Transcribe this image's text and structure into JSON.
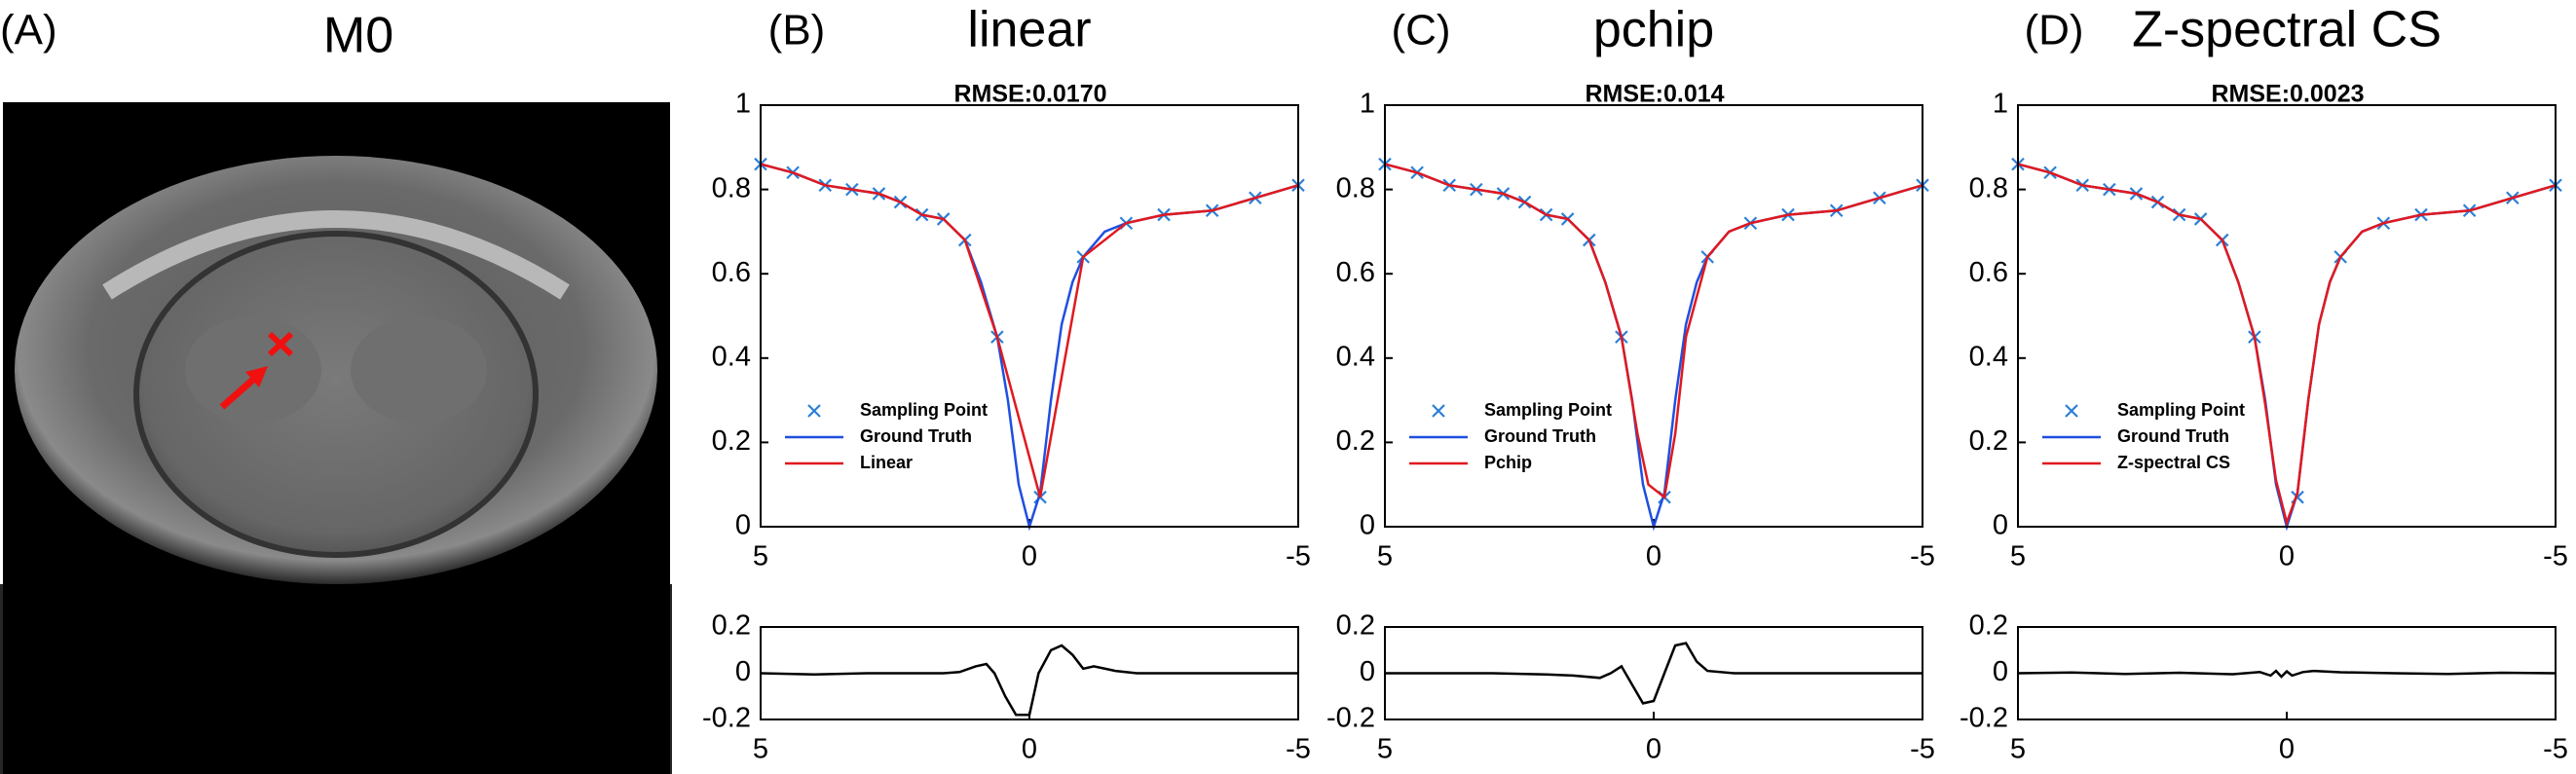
{
  "image_panel": {
    "label": "(A)",
    "title": "M0"
  },
  "chart_data": [
    {
      "type": "line",
      "panel_label": "(B)",
      "title": "linear",
      "subtitle": "RMSE:0.0170",
      "legend": "lower left",
      "xlim": [
        5,
        -5
      ],
      "xticks": [
        5,
        0,
        -5
      ],
      "ylim": [
        0,
        1
      ],
      "yticks": [
        0,
        0.2,
        0.4,
        0.6,
        0.8,
        1
      ],
      "series": [
        {
          "name": "Sampling Point",
          "color": "#2b7fd6",
          "marker": "x",
          "x": [
            5,
            4.4,
            3.8,
            3.3,
            2.8,
            2.4,
            2.0,
            1.6,
            1.2,
            0.6,
            -0.2,
            -1.0,
            -1.8,
            -2.5,
            -3.4,
            -4.2,
            -5
          ],
          "values": [
            0.86,
            0.84,
            0.81,
            0.8,
            0.79,
            0.77,
            0.74,
            0.73,
            0.68,
            0.45,
            0.07,
            0.64,
            0.72,
            0.74,
            0.75,
            0.78,
            0.81
          ]
        },
        {
          "name": "Ground Truth",
          "color": "#1f4fe0",
          "x": [
            5,
            4.4,
            3.8,
            3.3,
            2.8,
            2.4,
            2.0,
            1.6,
            1.2,
            0.9,
            0.6,
            0.4,
            0.2,
            0,
            -0.2,
            -0.4,
            -0.6,
            -0.8,
            -1.0,
            -1.4,
            -1.8,
            -2.5,
            -3.4,
            -4.2,
            -5
          ],
          "values": [
            0.86,
            0.84,
            0.81,
            0.8,
            0.79,
            0.77,
            0.74,
            0.73,
            0.68,
            0.58,
            0.45,
            0.3,
            0.1,
            0.0,
            0.08,
            0.3,
            0.48,
            0.58,
            0.64,
            0.7,
            0.72,
            0.74,
            0.75,
            0.78,
            0.81
          ]
        },
        {
          "name": "Linear",
          "color": "#e0191f",
          "x": [
            5,
            4.4,
            3.8,
            3.3,
            2.8,
            2.4,
            2.0,
            1.6,
            1.2,
            0.6,
            -0.2,
            -1.0,
            -1.8,
            -2.5,
            -3.4,
            -4.2,
            -5
          ],
          "values": [
            0.86,
            0.84,
            0.81,
            0.8,
            0.79,
            0.77,
            0.74,
            0.73,
            0.68,
            0.45,
            0.07,
            0.64,
            0.72,
            0.74,
            0.75,
            0.78,
            0.81
          ]
        }
      ]
    },
    {
      "type": "line",
      "xlim": [
        5,
        -5
      ],
      "xticks": [
        5,
        0,
        -5
      ],
      "ylim": [
        -0.2,
        0.2
      ],
      "yticks": [
        0.2,
        0,
        -0.2
      ],
      "series": [
        {
          "color": "#000000",
          "x": [
            5,
            4,
            3,
            2,
            1.6,
            1.3,
            1.0,
            0.8,
            0.65,
            0.45,
            0.25,
            0,
            -0.17,
            -0.4,
            -0.6,
            -0.8,
            -1.0,
            -1.2,
            -1.6,
            -2,
            -3,
            -4,
            -5
          ],
          "values": [
            0,
            -0.005,
            0,
            0,
            0,
            0.005,
            0.03,
            0.04,
            0,
            -0.1,
            -0.18,
            -0.18,
            0,
            0.1,
            0.12,
            0.08,
            0.02,
            0.03,
            0.01,
            0,
            0,
            0,
            0
          ]
        }
      ]
    },
    {
      "type": "line",
      "panel_label": "(C)",
      "title": "pchip",
      "subtitle": "RMSE:0.014",
      "legend": "lower left",
      "xlim": [
        5,
        -5
      ],
      "xticks": [
        5,
        0,
        -5
      ],
      "ylim": [
        0,
        1
      ],
      "yticks": [
        0,
        0.2,
        0.4,
        0.6,
        0.8,
        1
      ],
      "series": [
        {
          "name": "Sampling Point",
          "color": "#2b7fd6",
          "marker": "x",
          "x": [
            5,
            4.4,
            3.8,
            3.3,
            2.8,
            2.4,
            2.0,
            1.6,
            1.2,
            0.6,
            -0.2,
            -1.0,
            -1.8,
            -2.5,
            -3.4,
            -4.2,
            -5
          ],
          "values": [
            0.86,
            0.84,
            0.81,
            0.8,
            0.79,
            0.77,
            0.74,
            0.73,
            0.68,
            0.45,
            0.07,
            0.64,
            0.72,
            0.74,
            0.75,
            0.78,
            0.81
          ]
        },
        {
          "name": "Ground Truth",
          "color": "#1f4fe0",
          "x": [
            5,
            4.4,
            3.8,
            3.3,
            2.8,
            2.4,
            2.0,
            1.6,
            1.2,
            0.9,
            0.6,
            0.4,
            0.2,
            0,
            -0.2,
            -0.4,
            -0.6,
            -0.8,
            -1.0,
            -1.4,
            -1.8,
            -2.5,
            -3.4,
            -4.2,
            -5
          ],
          "values": [
            0.86,
            0.84,
            0.81,
            0.8,
            0.79,
            0.77,
            0.74,
            0.73,
            0.68,
            0.58,
            0.45,
            0.3,
            0.1,
            0.0,
            0.08,
            0.3,
            0.48,
            0.58,
            0.64,
            0.7,
            0.72,
            0.74,
            0.75,
            0.78,
            0.81
          ]
        },
        {
          "name": "Pchip",
          "color": "#e0191f",
          "x": [
            5,
            4.4,
            3.8,
            3.3,
            2.8,
            2.4,
            2.0,
            1.6,
            1.2,
            0.9,
            0.6,
            0.3,
            0.1,
            -0.2,
            -0.4,
            -0.6,
            -1.0,
            -1.4,
            -1.8,
            -2.5,
            -3.4,
            -4.2,
            -5
          ],
          "values": [
            0.86,
            0.84,
            0.81,
            0.8,
            0.79,
            0.77,
            0.74,
            0.73,
            0.68,
            0.58,
            0.45,
            0.22,
            0.1,
            0.07,
            0.22,
            0.45,
            0.64,
            0.7,
            0.72,
            0.74,
            0.75,
            0.78,
            0.81
          ]
        }
      ]
    },
    {
      "type": "line",
      "xlim": [
        5,
        -5
      ],
      "xticks": [
        5,
        0,
        -5
      ],
      "ylim": [
        -0.2,
        0.2
      ],
      "yticks": [
        0.2,
        0,
        -0.2
      ],
      "series": [
        {
          "color": "#000000",
          "x": [
            5,
            4,
            3,
            2,
            1.5,
            1.0,
            0.8,
            0.6,
            0.4,
            0.2,
            0,
            -0.2,
            -0.4,
            -0.6,
            -0.8,
            -1.0,
            -1.5,
            -2,
            -3,
            -4,
            -5
          ],
          "values": [
            0,
            0,
            0,
            -0.005,
            -0.01,
            -0.02,
            0.0,
            0.03,
            -0.05,
            -0.13,
            -0.12,
            0.0,
            0.12,
            0.13,
            0.05,
            0.01,
            0,
            0,
            0,
            0,
            0
          ]
        }
      ]
    },
    {
      "type": "line",
      "panel_label": "(D)",
      "title": "Z-spectral CS",
      "subtitle": "RMSE:0.0023",
      "legend": "lower left",
      "xlim": [
        5,
        -5
      ],
      "xticks": [
        5,
        0,
        -5
      ],
      "ylim": [
        0,
        1
      ],
      "yticks": [
        0,
        0.2,
        0.4,
        0.6,
        0.8,
        1
      ],
      "series": [
        {
          "name": "Sampling Point",
          "color": "#2b7fd6",
          "marker": "x",
          "x": [
            5,
            4.4,
            3.8,
            3.3,
            2.8,
            2.4,
            2.0,
            1.6,
            1.2,
            0.6,
            -0.2,
            -1.0,
            -1.8,
            -2.5,
            -3.4,
            -4.2,
            -5
          ],
          "values": [
            0.86,
            0.84,
            0.81,
            0.8,
            0.79,
            0.77,
            0.74,
            0.73,
            0.68,
            0.45,
            0.07,
            0.64,
            0.72,
            0.74,
            0.75,
            0.78,
            0.81
          ]
        },
        {
          "name": "Ground Truth",
          "color": "#1f4fe0",
          "x": [
            5,
            4.4,
            3.8,
            3.3,
            2.8,
            2.4,
            2.0,
            1.6,
            1.2,
            0.9,
            0.6,
            0.4,
            0.2,
            0,
            -0.2,
            -0.4,
            -0.6,
            -0.8,
            -1.0,
            -1.4,
            -1.8,
            -2.5,
            -3.4,
            -4.2,
            -5
          ],
          "values": [
            0.86,
            0.84,
            0.81,
            0.8,
            0.79,
            0.77,
            0.74,
            0.73,
            0.68,
            0.58,
            0.45,
            0.3,
            0.1,
            0.0,
            0.08,
            0.3,
            0.48,
            0.58,
            0.64,
            0.7,
            0.72,
            0.74,
            0.75,
            0.78,
            0.81
          ]
        },
        {
          "name": "Z-spectral CS",
          "color": "#e0191f",
          "x": [
            5,
            4.4,
            3.8,
            3.3,
            2.8,
            2.4,
            2.0,
            1.6,
            1.2,
            0.9,
            0.6,
            0.4,
            0.2,
            0,
            -0.2,
            -0.4,
            -0.6,
            -0.8,
            -1.0,
            -1.4,
            -1.8,
            -2.5,
            -3.4,
            -4.2,
            -5
          ],
          "values": [
            0.86,
            0.84,
            0.81,
            0.8,
            0.79,
            0.77,
            0.74,
            0.73,
            0.68,
            0.58,
            0.45,
            0.29,
            0.11,
            0.01,
            0.08,
            0.3,
            0.48,
            0.58,
            0.64,
            0.7,
            0.72,
            0.74,
            0.75,
            0.78,
            0.81
          ]
        }
      ]
    },
    {
      "type": "line",
      "xlim": [
        5,
        -5
      ],
      "xticks": [
        5,
        0,
        -5
      ],
      "ylim": [
        -0.2,
        0.2
      ],
      "yticks": [
        0.2,
        0,
        -0.2
      ],
      "series": [
        {
          "color": "#000000",
          "x": [
            5,
            4,
            3,
            2,
            1,
            0.5,
            0.3,
            0.2,
            0.1,
            0,
            -0.1,
            -0.3,
            -0.5,
            -1,
            -2,
            -3,
            -4,
            -5
          ],
          "values": [
            0,
            0.003,
            -0.003,
            0.002,
            -0.004,
            0.005,
            -0.01,
            0.01,
            -0.015,
            0.008,
            -0.01,
            0.005,
            0.01,
            0.004,
            0,
            -0.003,
            0.002,
            0
          ]
        }
      ]
    }
  ]
}
